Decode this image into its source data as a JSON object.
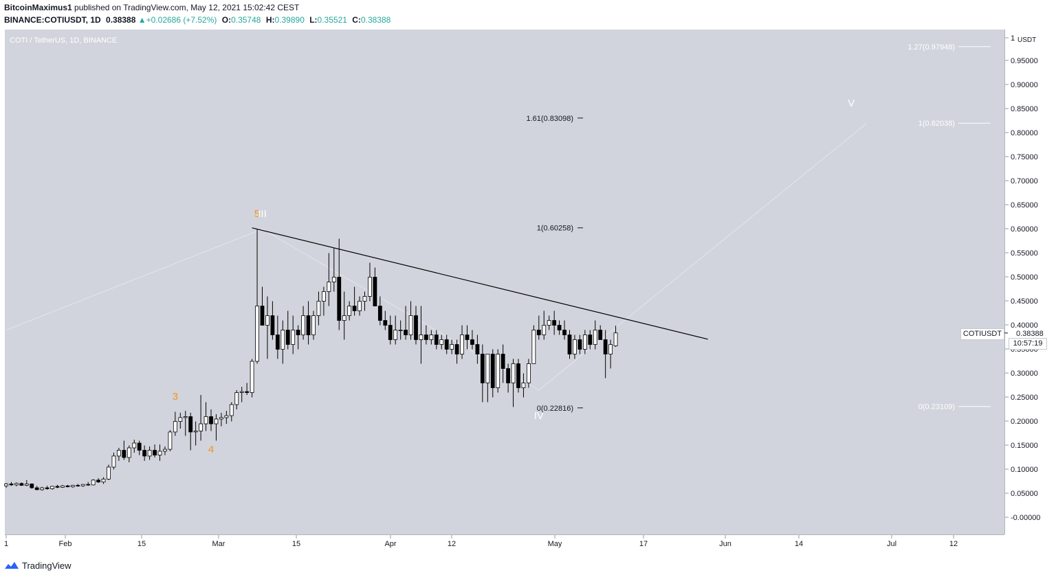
{
  "header": {
    "author": "BitcoinMaximus1",
    "published_text": "published on TradingView.com, May 12, 2021 15:02:42 CEST",
    "symbol": "BINANCE:COTIUSDT, 1D",
    "last_price": "0.38388",
    "change": "+0.02686 (+7.52%)",
    "open_label": "O:",
    "open": "0.35748",
    "high_label": "H:",
    "high": "0.39890",
    "low_label": "L:",
    "low": "0.35521",
    "close_label": "C:",
    "close": "0.38388"
  },
  "chart": {
    "symbol_label": "COTI / TetherUS, 1D, BINANCE",
    "price_tag": "COTIUSDT",
    "price_value": "0.38388",
    "countdown": "10:57:19"
  },
  "footer": {
    "brand": "TradingView"
  },
  "colors": {
    "background": "#d1d4dc",
    "wave_orange": "#f7931a",
    "candle_up": "#ffffff",
    "candle_down": "#000000",
    "trendline": "#000000"
  },
  "chart_data": {
    "type": "candlestick",
    "unit_label": "USDT",
    "y_ticks": [
      "1",
      "0.95000",
      "0.90000",
      "0.85000",
      "0.80000",
      "0.75000",
      "0.70000",
      "0.65000",
      "0.60000",
      "0.55000",
      "0.50000",
      "0.45000",
      "0.40000",
      "0.35000",
      "0.30000",
      "0.25000",
      "0.20000",
      "0.15000",
      "0.10000",
      "0.05000",
      "-0.00000"
    ],
    "x_ticks": [
      "1",
      "Feb",
      "15",
      "Mar",
      "15",
      "Apr",
      "12",
      "May",
      "17",
      "Jun",
      "14",
      "Jul",
      "12"
    ],
    "ylim": [
      -0.03,
      1.0
    ],
    "candles": [
      [
        0.066,
        0.072,
        0.062,
        0.07
      ],
      [
        0.07,
        0.074,
        0.066,
        0.068
      ],
      [
        0.068,
        0.073,
        0.065,
        0.071
      ],
      [
        0.071,
        0.073,
        0.066,
        0.067
      ],
      [
        0.067,
        0.078,
        0.065,
        0.07
      ],
      [
        0.07,
        0.071,
        0.06,
        0.062
      ],
      [
        0.062,
        0.066,
        0.057,
        0.058
      ],
      [
        0.058,
        0.064,
        0.056,
        0.062
      ],
      [
        0.062,
        0.066,
        0.058,
        0.06
      ],
      [
        0.06,
        0.066,
        0.058,
        0.065
      ],
      [
        0.065,
        0.068,
        0.061,
        0.063
      ],
      [
        0.063,
        0.068,
        0.062,
        0.066
      ],
      [
        0.066,
        0.068,
        0.063,
        0.064
      ],
      [
        0.064,
        0.068,
        0.062,
        0.067
      ],
      [
        0.067,
        0.07,
        0.064,
        0.066
      ],
      [
        0.066,
        0.07,
        0.064,
        0.069
      ],
      [
        0.069,
        0.074,
        0.066,
        0.068
      ],
      [
        0.068,
        0.08,
        0.067,
        0.078
      ],
      [
        0.078,
        0.082,
        0.072,
        0.074
      ],
      [
        0.074,
        0.084,
        0.07,
        0.08
      ],
      [
        0.08,
        0.11,
        0.078,
        0.105
      ],
      [
        0.105,
        0.135,
        0.1,
        0.128
      ],
      [
        0.128,
        0.145,
        0.118,
        0.14
      ],
      [
        0.14,
        0.16,
        0.12,
        0.125
      ],
      [
        0.125,
        0.15,
        0.115,
        0.145
      ],
      [
        0.145,
        0.162,
        0.135,
        0.155
      ],
      [
        0.155,
        0.16,
        0.13,
        0.14
      ],
      [
        0.14,
        0.15,
        0.118,
        0.128
      ],
      [
        0.128,
        0.148,
        0.12,
        0.14
      ],
      [
        0.14,
        0.152,
        0.125,
        0.13
      ],
      [
        0.13,
        0.152,
        0.118,
        0.138
      ],
      [
        0.138,
        0.148,
        0.13,
        0.142
      ],
      [
        0.142,
        0.182,
        0.138,
        0.178
      ],
      [
        0.178,
        0.22,
        0.17,
        0.2
      ],
      [
        0.2,
        0.218,
        0.185,
        0.208
      ],
      [
        0.208,
        0.222,
        0.17,
        0.21
      ],
      [
        0.21,
        0.218,
        0.14,
        0.178
      ],
      [
        0.178,
        0.2,
        0.15,
        0.18
      ],
      [
        0.18,
        0.255,
        0.16,
        0.195
      ],
      [
        0.195,
        0.24,
        0.18,
        0.21
      ],
      [
        0.21,
        0.225,
        0.18,
        0.195
      ],
      [
        0.195,
        0.215,
        0.16,
        0.205
      ],
      [
        0.205,
        0.218,
        0.19,
        0.208
      ],
      [
        0.208,
        0.222,
        0.195,
        0.212
      ],
      [
        0.212,
        0.24,
        0.2,
        0.235
      ],
      [
        0.235,
        0.265,
        0.225,
        0.26
      ],
      [
        0.26,
        0.272,
        0.24,
        0.262
      ],
      [
        0.262,
        0.28,
        0.255,
        0.26
      ],
      [
        0.26,
        0.33,
        0.25,
        0.325
      ],
      [
        0.325,
        0.6,
        0.32,
        0.44
      ],
      [
        0.44,
        0.48,
        0.4,
        0.4
      ],
      [
        0.4,
        0.46,
        0.33,
        0.42
      ],
      [
        0.42,
        0.45,
        0.37,
        0.38
      ],
      [
        0.38,
        0.42,
        0.33,
        0.35
      ],
      [
        0.35,
        0.41,
        0.32,
        0.39
      ],
      [
        0.39,
        0.43,
        0.35,
        0.36
      ],
      [
        0.36,
        0.42,
        0.34,
        0.39
      ],
      [
        0.39,
        0.4,
        0.35,
        0.38
      ],
      [
        0.38,
        0.44,
        0.37,
        0.42
      ],
      [
        0.42,
        0.45,
        0.36,
        0.38
      ],
      [
        0.38,
        0.43,
        0.37,
        0.42
      ],
      [
        0.42,
        0.47,
        0.4,
        0.45
      ],
      [
        0.45,
        0.48,
        0.42,
        0.47
      ],
      [
        0.47,
        0.55,
        0.44,
        0.49
      ],
      [
        0.49,
        0.56,
        0.47,
        0.5
      ],
      [
        0.5,
        0.58,
        0.39,
        0.41
      ],
      [
        0.41,
        0.47,
        0.37,
        0.42
      ],
      [
        0.42,
        0.45,
        0.41,
        0.44
      ],
      [
        0.44,
        0.48,
        0.42,
        0.43
      ],
      [
        0.43,
        0.46,
        0.42,
        0.45
      ],
      [
        0.45,
        0.47,
        0.43,
        0.46
      ],
      [
        0.46,
        0.53,
        0.45,
        0.5
      ],
      [
        0.5,
        0.52,
        0.44,
        0.44
      ],
      [
        0.44,
        0.46,
        0.4,
        0.41
      ],
      [
        0.41,
        0.43,
        0.39,
        0.4
      ],
      [
        0.4,
        0.42,
        0.36,
        0.37
      ],
      [
        0.37,
        0.42,
        0.36,
        0.39
      ],
      [
        0.39,
        0.41,
        0.37,
        0.39
      ],
      [
        0.39,
        0.44,
        0.37,
        0.38
      ],
      [
        0.38,
        0.45,
        0.37,
        0.42
      ],
      [
        0.42,
        0.44,
        0.36,
        0.37
      ],
      [
        0.37,
        0.44,
        0.32,
        0.38
      ],
      [
        0.38,
        0.4,
        0.36,
        0.37
      ],
      [
        0.37,
        0.39,
        0.36,
        0.38
      ],
      [
        0.38,
        0.39,
        0.35,
        0.36
      ],
      [
        0.36,
        0.38,
        0.35,
        0.37
      ],
      [
        0.37,
        0.38,
        0.34,
        0.35
      ],
      [
        0.35,
        0.37,
        0.34,
        0.36
      ],
      [
        0.36,
        0.37,
        0.32,
        0.34
      ],
      [
        0.34,
        0.4,
        0.33,
        0.38
      ],
      [
        0.38,
        0.4,
        0.35,
        0.37
      ],
      [
        0.37,
        0.39,
        0.35,
        0.36
      ],
      [
        0.36,
        0.38,
        0.32,
        0.34
      ],
      [
        0.34,
        0.36,
        0.24,
        0.28
      ],
      [
        0.28,
        0.33,
        0.24,
        0.34
      ],
      [
        0.34,
        0.35,
        0.25,
        0.27
      ],
      [
        0.27,
        0.35,
        0.26,
        0.34
      ],
      [
        0.34,
        0.36,
        0.28,
        0.31
      ],
      [
        0.31,
        0.32,
        0.26,
        0.28
      ],
      [
        0.28,
        0.33,
        0.23,
        0.32
      ],
      [
        0.32,
        0.33,
        0.26,
        0.27
      ],
      [
        0.27,
        0.3,
        0.25,
        0.28
      ],
      [
        0.28,
        0.33,
        0.27,
        0.32
      ],
      [
        0.32,
        0.4,
        0.32,
        0.39
      ],
      [
        0.39,
        0.42,
        0.37,
        0.38
      ],
      [
        0.38,
        0.43,
        0.37,
        0.4
      ],
      [
        0.4,
        0.42,
        0.39,
        0.41
      ],
      [
        0.41,
        0.43,
        0.38,
        0.4
      ],
      [
        0.4,
        0.41,
        0.38,
        0.39
      ],
      [
        0.39,
        0.41,
        0.37,
        0.38
      ],
      [
        0.38,
        0.39,
        0.33,
        0.34
      ],
      [
        0.34,
        0.38,
        0.33,
        0.37
      ],
      [
        0.37,
        0.38,
        0.34,
        0.35
      ],
      [
        0.35,
        0.39,
        0.34,
        0.38
      ],
      [
        0.38,
        0.39,
        0.35,
        0.36
      ],
      [
        0.36,
        0.41,
        0.35,
        0.39
      ],
      [
        0.39,
        0.4,
        0.38,
        0.37
      ],
      [
        0.37,
        0.39,
        0.29,
        0.34
      ],
      [
        0.34,
        0.37,
        0.31,
        0.36
      ],
      [
        0.357,
        0.399,
        0.355,
        0.384
      ]
    ],
    "trendline": {
      "start": [
        48,
        0.6026
      ],
      "end": [
        137,
        0.371
      ]
    },
    "wave_labels": [
      {
        "label": "3",
        "index": 33,
        "value": 0.245,
        "color": "orange"
      },
      {
        "label": "4",
        "index": 40,
        "value": 0.135,
        "color": "orange"
      },
      {
        "label": "5",
        "index": 49,
        "value": 0.625,
        "color": "orange"
      },
      {
        "label": "III",
        "index": 50,
        "value": 0.625,
        "color": "white"
      },
      {
        "label": "IV",
        "index": 104,
        "value": 0.205,
        "color": "white"
      },
      {
        "label": "V",
        "index": 165,
        "value": 0.855,
        "color": "white"
      }
    ],
    "fib_left": [
      {
        "label": "1.61(0.83098)",
        "value": 0.83098
      },
      {
        "label": "1(0.60258)",
        "value": 0.60258
      },
      {
        "label": "0(0.22816)",
        "value": 0.22816
      }
    ],
    "fib_right": [
      {
        "label": "1.27(0.97948)",
        "value": 0.97948
      },
      {
        "label": "1(0.82038)",
        "value": 0.82038
      },
      {
        "label": "0(0.23109)",
        "value": 0.23109
      }
    ],
    "projection_path": [
      [
        0,
        0.39
      ],
      [
        50,
        0.6
      ],
      [
        104,
        0.265
      ],
      [
        168,
        0.82
      ]
    ]
  }
}
